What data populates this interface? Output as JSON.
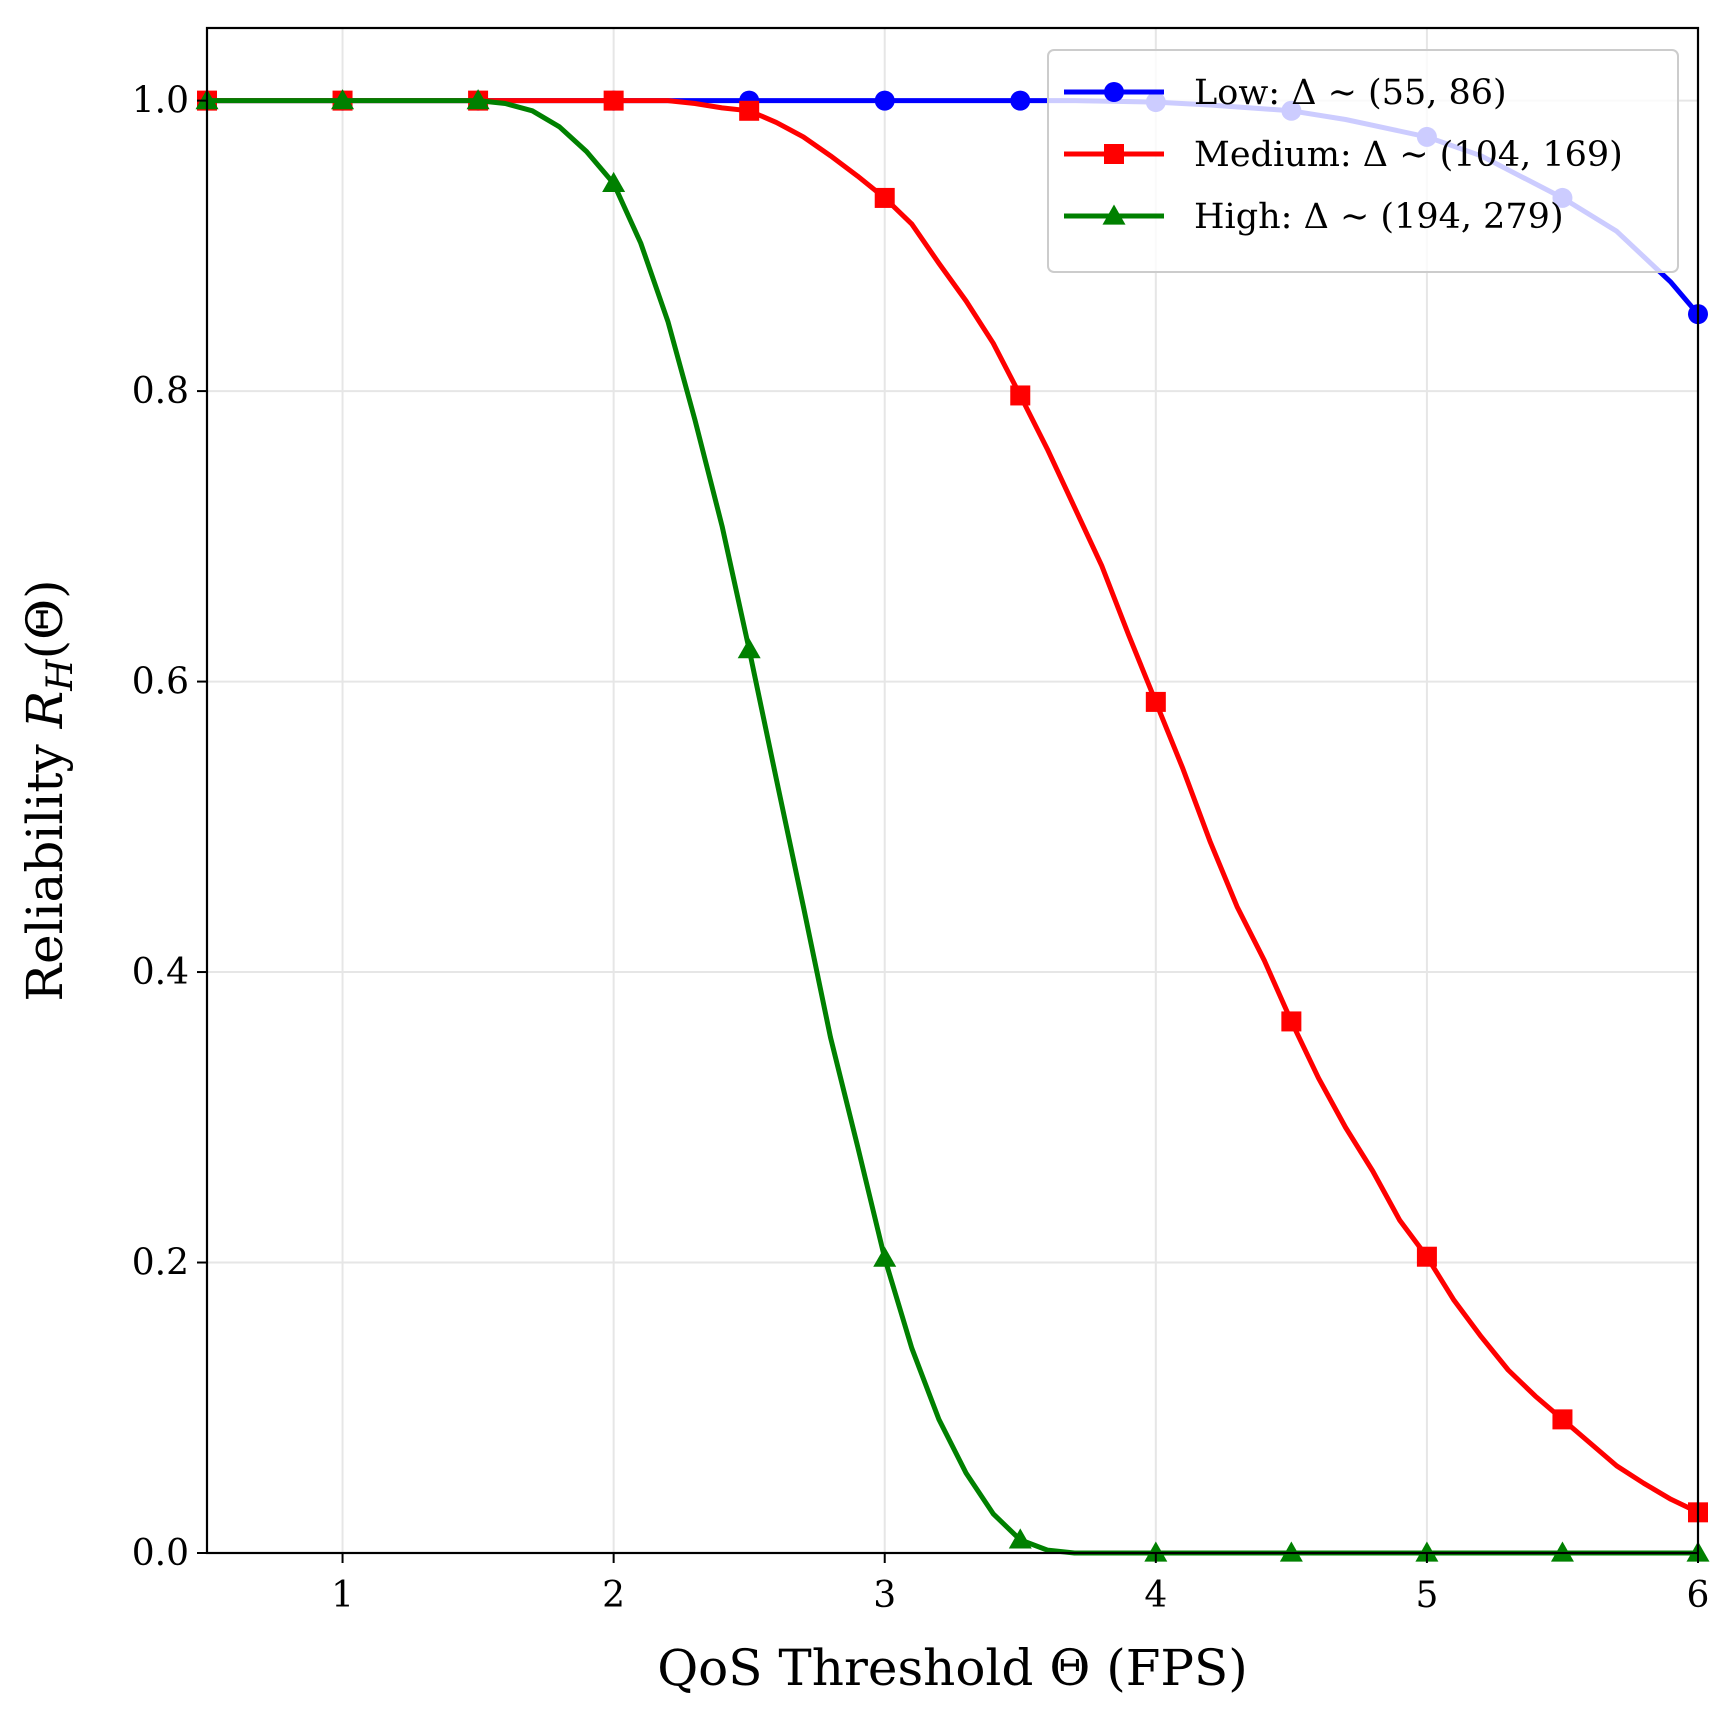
{
  "chart_data": {
    "type": "line",
    "title": "",
    "xlabel": "QoS Threshold Θ (FPS)",
    "ylabel": "Reliability R_H(Θ)",
    "ylabel_parts": {
      "prefix": "Reliability ",
      "symbol": "R",
      "subscript": "H",
      "suffix": "(Θ)"
    },
    "xlim": [
      0.5,
      6
    ],
    "ylim": [
      0,
      1.05
    ],
    "xticks": [
      1,
      2,
      3,
      4,
      5,
      6
    ],
    "xtick_labels": [
      "1",
      "2",
      "3",
      "4",
      "5",
      "6"
    ],
    "yticks": [
      0.0,
      0.2,
      0.4,
      0.6,
      0.8,
      1.0
    ],
    "ytick_labels": [
      "0.0",
      "0.2",
      "0.4",
      "0.6",
      "0.8",
      "1.0"
    ],
    "grid": true,
    "legend_position": "top-right",
    "series": [
      {
        "name": "Low: Δ ∼ (55, 86)",
        "color": "#0000ff",
        "marker": "circle",
        "x": [
          0.5,
          1.0,
          1.5,
          2.0,
          2.5,
          3.0,
          3.5,
          3.7,
          4.0,
          4.2,
          4.5,
          4.7,
          5.0,
          5.2,
          5.5,
          5.7,
          5.9,
          6.0
        ],
        "y": [
          1.0,
          1.0,
          1.0,
          1.0,
          1.0,
          1.0,
          1.0,
          1.0,
          0.999,
          0.997,
          0.993,
          0.987,
          0.975,
          0.962,
          0.933,
          0.91,
          0.875,
          0.853
        ],
        "marker_x": [
          0.5,
          1.0,
          1.5,
          2.0,
          2.5,
          3.0,
          3.5,
          4.0,
          4.5,
          5.0,
          5.5,
          6.0
        ],
        "marker_y": [
          1.0,
          1.0,
          1.0,
          1.0,
          1.0,
          1.0,
          1.0,
          0.999,
          0.993,
          0.975,
          0.933,
          0.853
        ]
      },
      {
        "name": "Medium: Δ ∼ (104, 169)",
        "color": "#ff0000",
        "marker": "square",
        "x": [
          0.5,
          1.0,
          1.5,
          2.0,
          2.2,
          2.3,
          2.4,
          2.5,
          2.6,
          2.7,
          2.8,
          2.9,
          3.0,
          3.1,
          3.2,
          3.3,
          3.4,
          3.5,
          3.6,
          3.7,
          3.8,
          3.9,
          4.0,
          4.1,
          4.2,
          4.3,
          4.4,
          4.5,
          4.6,
          4.7,
          4.8,
          4.9,
          5.0,
          5.1,
          5.2,
          5.3,
          5.4,
          5.5,
          5.6,
          5.7,
          5.8,
          5.9,
          6.0
        ],
        "y": [
          1.0,
          1.0,
          1.0,
          1.0,
          1.0,
          0.998,
          0.995,
          0.993,
          0.985,
          0.975,
          0.962,
          0.948,
          0.933,
          0.915,
          0.888,
          0.862,
          0.833,
          0.797,
          0.76,
          0.72,
          0.68,
          0.632,
          0.586,
          0.54,
          0.49,
          0.445,
          0.408,
          0.366,
          0.327,
          0.293,
          0.263,
          0.229,
          0.204,
          0.174,
          0.149,
          0.126,
          0.108,
          0.092,
          0.076,
          0.06,
          0.048,
          0.037,
          0.028
        ],
        "marker_x": [
          0.5,
          1.0,
          1.5,
          2.0,
          2.5,
          3.0,
          3.5,
          4.0,
          4.5,
          5.0,
          5.5,
          6.0
        ],
        "marker_y": [
          1.0,
          1.0,
          1.0,
          1.0,
          0.993,
          0.933,
          0.797,
          0.586,
          0.366,
          0.204,
          0.092,
          0.028
        ]
      },
      {
        "name": "High: Δ ∼ (194, 279)",
        "color": "#008000",
        "marker": "triangle",
        "x": [
          0.5,
          1.0,
          1.5,
          1.6,
          1.7,
          1.8,
          1.9,
          2.0,
          2.1,
          2.2,
          2.3,
          2.4,
          2.5,
          2.6,
          2.7,
          2.8,
          2.9,
          3.0,
          3.1,
          3.2,
          3.3,
          3.4,
          3.5,
          3.6,
          3.7,
          3.8,
          4.0,
          4.5,
          5.0,
          5.5,
          6.0
        ],
        "y": [
          1.0,
          1.0,
          1.0,
          0.998,
          0.993,
          0.982,
          0.965,
          0.943,
          0.902,
          0.848,
          0.78,
          0.707,
          0.622,
          0.533,
          0.445,
          0.355,
          0.28,
          0.203,
          0.141,
          0.092,
          0.055,
          0.027,
          0.009,
          0.002,
          0.0,
          0.0,
          0.0,
          0.0,
          0.0,
          0.0,
          0.0
        ],
        "marker_x": [
          0.5,
          1.0,
          1.5,
          2.0,
          2.5,
          3.0,
          3.5,
          4.0,
          4.5,
          5.0,
          5.5,
          6.0
        ],
        "marker_y": [
          1.0,
          1.0,
          1.0,
          0.943,
          0.622,
          0.203,
          0.009,
          0.0,
          0.0,
          0.0,
          0.0,
          0.0
        ]
      }
    ]
  }
}
